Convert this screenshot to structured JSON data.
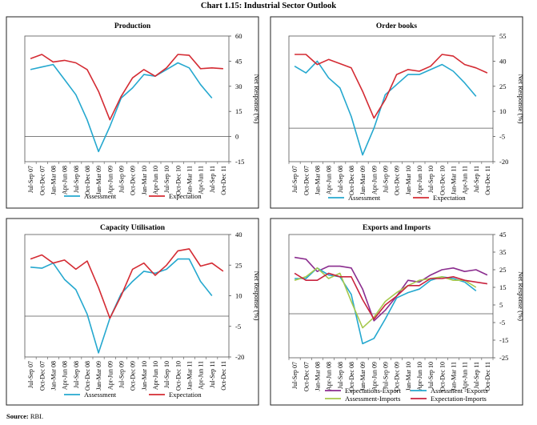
{
  "title": "Chart 1.15: Industrial Sector Outlook",
  "source": {
    "label": "Source:",
    "text": " RBI."
  },
  "chart_data": [
    {
      "type": "line",
      "title": "Production",
      "ylabel": "Net Response (%)",
      "ylim": [
        -15,
        60
      ],
      "yticks": [
        -15,
        0,
        15,
        30,
        45,
        60
      ],
      "x": [
        "Jul-Sep 07",
        "Oct-Dec 07",
        "Jan-Mar 08",
        "Apr-Jun 08",
        "Jul-Sep 08",
        "Oct-Dec 08",
        "Jan-Mar 09",
        "Apr-Jun 09",
        "Jul-Sep 09",
        "Oct-Dec 09",
        "Jan-Mar 10",
        "Apr-Jun 10",
        "Jul-Sep 10",
        "Oct-Dec 10",
        "Jan-Mar 11",
        "Apr-Jun 11",
        "Jul-Sep 11",
        "Oct-Dec 11"
      ],
      "series": [
        {
          "name": "Assessment",
          "color": "#25A8CF",
          "values": [
            40,
            41.5,
            43,
            34,
            25,
            10,
            -9,
            6,
            23,
            29,
            37,
            36,
            40,
            44,
            41,
            31,
            23,
            null
          ]
        },
        {
          "name": "Expectation",
          "color": "#D42B33",
          "values": [
            46.5,
            49,
            44.5,
            45.5,
            44,
            40,
            27,
            10,
            24,
            35,
            40,
            36,
            41,
            49,
            48.5,
            40.5,
            41,
            40.5
          ]
        }
      ]
    },
    {
      "type": "line",
      "title": "Order books",
      "ylabel": "Net Response (%)",
      "ylim": [
        -20,
        55
      ],
      "yticks": [
        -20,
        -5,
        10,
        25,
        40,
        55
      ],
      "x": [
        "Jul-Sep 07",
        "Oct-Dec 07",
        "Jan-Mar 08",
        "Apr-Jun 08",
        "Jul-Sep 08",
        "Oct-Dec 08",
        "Jan-Mar 09",
        "Apr-Jun 09",
        "Jul-Sep 09",
        "Oct-Dec 09",
        "Jan-Mar 10",
        "Apr-Jun 10",
        "Jul-Sep 10",
        "Oct-Dec 10",
        "Jan-Mar 11",
        "Apr-Jun 11",
        "Jul-Sep 11",
        "Oct-Dec 11"
      ],
      "series": [
        {
          "name": "Assessment",
          "color": "#25A8CF",
          "values": [
            37,
            33,
            40,
            30,
            24,
            7,
            -16,
            0,
            20,
            26,
            32,
            32,
            35,
            38,
            34,
            27,
            19,
            null
          ]
        },
        {
          "name": "Expectation",
          "color": "#D42B33",
          "values": [
            44,
            44,
            38,
            41,
            38.5,
            36,
            22,
            6,
            17,
            32,
            35,
            34,
            37,
            44,
            43,
            38,
            36,
            33
          ]
        }
      ]
    },
    {
      "type": "line",
      "title": "Capacity Utilisation",
      "ylabel": "Net Response (%)",
      "ylim": [
        -20,
        40
      ],
      "yticks": [
        -20,
        -5,
        10,
        25,
        40
      ],
      "x": [
        "Jul-Sep 07",
        "Oct-Dec 07",
        "Jan-Mar 08",
        "Apr-Jun 08",
        "Jul-Sep 08",
        "Oct-Dec 08",
        "Jan-Mar 09",
        "Apr-Jun 09",
        "Jul-Sep 09",
        "Oct-Dec 09",
        "Jan-Mar 10",
        "Apr-Jun 10",
        "Jul-Sep 10",
        "Oct-Dec 10",
        "Jan-Mar 11",
        "Apr-Jun 11",
        "Jul-Sep 11",
        "Oct-Dec 11"
      ],
      "series": [
        {
          "name": "Assessment",
          "color": "#25A8CF",
          "values": [
            24,
            23.5,
            26,
            18,
            13,
            1,
            -18,
            -1,
            11,
            17,
            22,
            21,
            23,
            28,
            28,
            17,
            10,
            null
          ]
        },
        {
          "name": "Expectation",
          "color": "#D42B33",
          "values": [
            28,
            30,
            26,
            27.5,
            23,
            27,
            14,
            -1,
            10,
            23,
            26,
            20,
            25,
            32,
            33,
            24.5,
            26,
            22
          ]
        }
      ]
    },
    {
      "type": "line",
      "title": "Exports and Imports",
      "ylabel": "Net Response (%)",
      "ylim": [
        -25,
        45
      ],
      "yticks": [
        -25,
        -15,
        -5,
        5,
        15,
        25,
        35,
        45
      ],
      "x": [
        "Jul-Sep 07",
        "Oct-Dec 07",
        "Jan-Mar 08",
        "Apr-Jun 08",
        "Jul-Sep 08",
        "Oct-Dec 08",
        "Jan-Mar 09",
        "Apr-Jun 09",
        "Jul-Sep 09",
        "Oct-Dec 09",
        "Jan-Mar 10",
        "Apr-Jun 10",
        "Jul-Sep 10",
        "Oct-Dec 10",
        "Jan-Mar 11",
        "Apr-Jun 11",
        "Jul-Sep 11",
        "Oct-Dec 11"
      ],
      "series": [
        {
          "name": "Expectations-Export",
          "color": "#8B2D8F",
          "values": [
            32,
            31,
            24,
            27,
            27,
            26,
            14,
            -4,
            2,
            10,
            19,
            18,
            22,
            25,
            26,
            24,
            25,
            22
          ]
        },
        {
          "name": "Assessment -Exports",
          "color": "#25A8CF",
          "values": [
            20,
            20,
            26,
            22,
            21,
            11,
            -17,
            -14,
            -3,
            9,
            12,
            14,
            19,
            21,
            20,
            18,
            13,
            null
          ]
        },
        {
          "name": "Assessment-Imports",
          "color": "#A6C84C",
          "values": [
            19,
            21,
            26,
            20,
            23,
            7,
            -8,
            -2,
            7,
            12,
            16,
            19,
            20,
            21,
            19,
            19,
            15,
            null
          ]
        },
        {
          "name": "Expectation-Imports",
          "color": "#C8233E",
          "values": [
            23,
            19,
            19,
            23,
            21,
            21,
            8,
            -3,
            5,
            10,
            16,
            16,
            20,
            20,
            21,
            19,
            18,
            17
          ]
        }
      ]
    }
  ]
}
